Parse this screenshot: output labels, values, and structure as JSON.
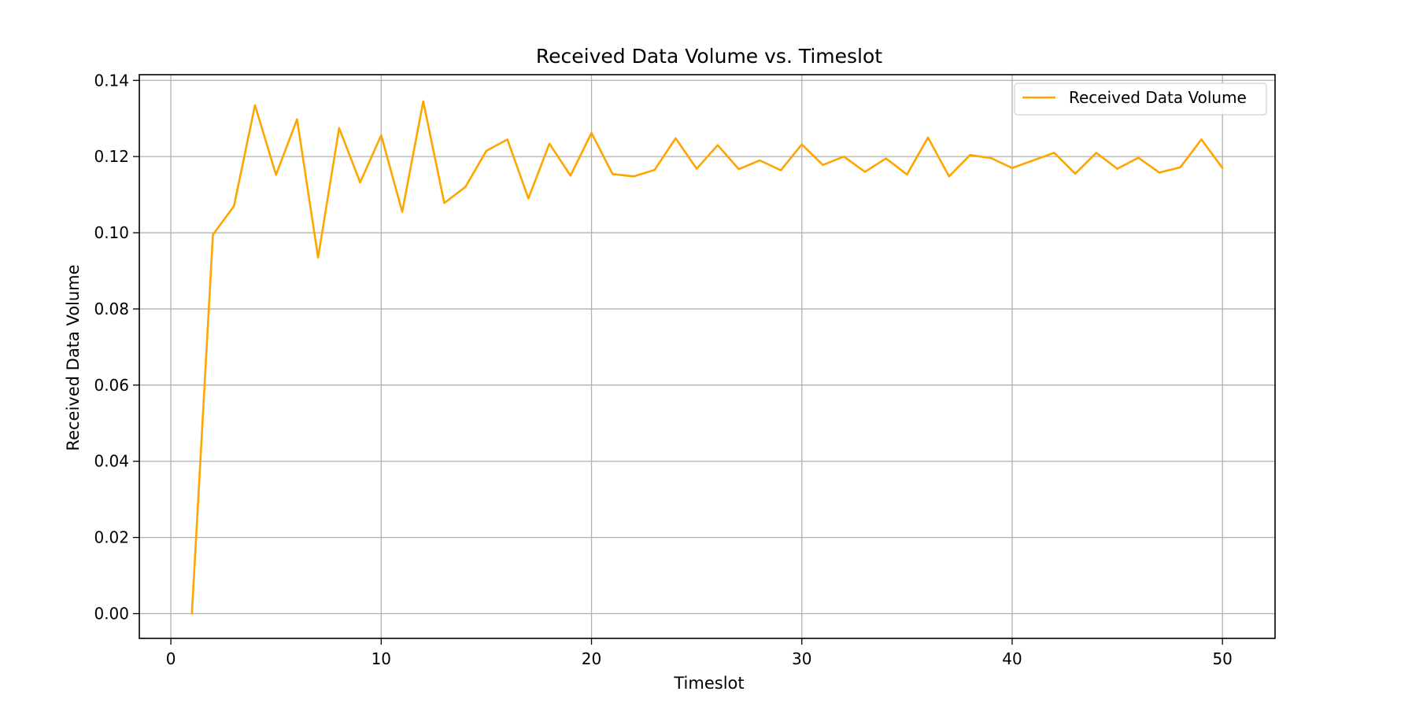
{
  "chart_data": {
    "type": "line",
    "title": "Received Data Volume vs. Timeslot",
    "xlabel": "Timeslot",
    "ylabel": "Received Data Volume",
    "xlim": [
      -1.5,
      52.5
    ],
    "ylim": [
      -0.0065,
      0.1415
    ],
    "xticks": [
      0,
      10,
      20,
      30,
      40,
      50
    ],
    "xtick_labels": [
      "0",
      "10",
      "20",
      "30",
      "40",
      "50"
    ],
    "yticks": [
      0.0,
      0.02,
      0.04,
      0.06,
      0.08,
      0.1,
      0.12,
      0.14
    ],
    "ytick_labels": [
      "0.00",
      "0.02",
      "0.04",
      "0.06",
      "0.08",
      "0.10",
      "0.12",
      "0.14"
    ],
    "grid": true,
    "legend_position": "top-right",
    "series": [
      {
        "name": "Received Data Volume",
        "color": "#FFA500",
        "x": [
          1,
          2,
          3,
          4,
          5,
          6,
          7,
          8,
          9,
          10,
          11,
          12,
          13,
          14,
          15,
          16,
          17,
          18,
          19,
          20,
          21,
          22,
          23,
          24,
          25,
          26,
          27,
          28,
          29,
          30,
          31,
          32,
          33,
          34,
          35,
          36,
          37,
          38,
          39,
          40,
          41,
          42,
          43,
          44,
          45,
          46,
          47,
          48,
          49,
          50
        ],
        "y": [
          0.0,
          0.0995,
          0.107,
          0.1335,
          0.1152,
          0.1298,
          0.0935,
          0.1275,
          0.1132,
          0.1256,
          0.1055,
          0.1345,
          0.1078,
          0.112,
          0.1215,
          0.1245,
          0.109,
          0.1234,
          0.115,
          0.1262,
          0.1154,
          0.1148,
          0.1165,
          0.1248,
          0.1168,
          0.123,
          0.1167,
          0.119,
          0.1164,
          0.1232,
          0.1178,
          0.12,
          0.116,
          0.1195,
          0.1153,
          0.125,
          0.1148,
          0.1204,
          0.1196,
          0.117,
          0.119,
          0.121,
          0.1155,
          0.121,
          0.1168,
          0.1197,
          0.1158,
          0.1172,
          0.1245,
          0.117
        ]
      }
    ]
  }
}
